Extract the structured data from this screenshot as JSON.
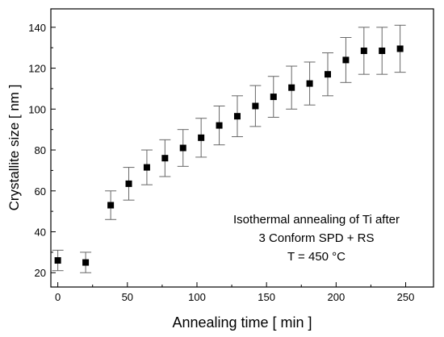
{
  "chart_data": {
    "type": "scatter",
    "title": "",
    "xlabel": "Annealing time [ min ]",
    "ylabel": "Crystallite size [ nm ]",
    "xlim": [
      -5,
      270
    ],
    "ylim": [
      13,
      149
    ],
    "xticks": [
      0,
      50,
      100,
      150,
      200,
      250
    ],
    "yticks": [
      20,
      40,
      60,
      80,
      100,
      120,
      140
    ],
    "grid": false,
    "legend": "none",
    "annotation": [
      "Isothermal annealing of Ti after",
      "3 Conform SPD + RS",
      "T = 450 °C"
    ],
    "marker_color": "#000000",
    "errorbar_color": "#666666",
    "series": [
      {
        "x": [
          0,
          20,
          38,
          51,
          64,
          77,
          90,
          103,
          116,
          129,
          142,
          155,
          168,
          181,
          194,
          207,
          220,
          233,
          246
        ],
        "y": [
          26,
          25,
          53,
          63.5,
          71.5,
          76,
          81,
          86,
          92,
          96.5,
          101.5,
          106,
          110.5,
          112.5,
          117,
          124,
          128.5,
          128.5,
          129.5
        ],
        "error": [
          5,
          5,
          7,
          8,
          8.5,
          9,
          9,
          9.5,
          9.5,
          10,
          10,
          10,
          10.5,
          10.5,
          10.5,
          11,
          11.5,
          11.5,
          11.5
        ]
      }
    ]
  }
}
